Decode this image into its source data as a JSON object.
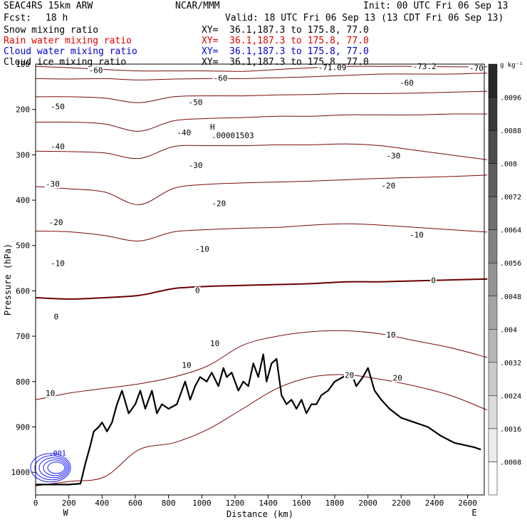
{
  "header": {
    "model": "SEAC4RS 15km ARW",
    "org": "NCAR/MMM",
    "init": "Init: 00 UTC Fri 06 Sep 13",
    "fcst_label": "Fcst:",
    "fcst_value": "18 h",
    "valid": "Valid: 18 UTC Fri 06 Sep 13 (13 CDT Fri 06 Sep 13)",
    "fields": [
      {
        "name": "Snow mixing ratio",
        "xy": "XY=  36.1,187.3 to 175.8, 77.0",
        "color": "#000000"
      },
      {
        "name": "Rain water mixing ratio",
        "xy": "XY=  36.1,187.3 to 175.8, 77.0",
        "color": "#e00000"
      },
      {
        "name": "Cloud water mixing ratio",
        "xy": "XY=  36.1,187.3 to 175.8, 77.0",
        "color": "#0000d0"
      },
      {
        "name": "Cloud ice mixing ratio",
        "xy": "XY=  36.1,187.3 to 175.8, 77.0",
        "color": "#000000"
      }
    ]
  },
  "chart_data": {
    "type": "contour cross-section",
    "xlabel": "Distance (km)",
    "ylabel": "Pressure (hPa)",
    "xlim": [
      0,
      2700
    ],
    "ylim": [
      1050,
      100
    ],
    "x_ticks": [
      0,
      200,
      400,
      600,
      800,
      1000,
      1200,
      1400,
      1600,
      1800,
      2000,
      2200,
      2400,
      2600
    ],
    "y_ticks": [
      200,
      300,
      400,
      500,
      600,
      700,
      800,
      900,
      1000
    ],
    "y_tick_top": "100",
    "endpoint_left": "W",
    "endpoint_right": "E",
    "temperature_contours_c": [
      {
        "value": -70,
        "p": [
          105,
          108,
          112,
          115,
          115,
          115,
          116,
          112,
          108,
          105,
          105,
          105,
          106,
          106
        ]
      },
      {
        "value": -60,
        "p": [
          132,
          133,
          132,
          135,
          133,
          132,
          132,
          130,
          128,
          125,
          122,
          122,
          122,
          120
        ]
      },
      {
        "value": -50,
        "p": [
          172,
          172,
          175,
          185,
          172,
          170,
          170,
          168,
          167,
          165,
          165,
          164,
          162,
          160
        ]
      },
      {
        "value": -40,
        "p": [
          228,
          228,
          232,
          248,
          225,
          220,
          218,
          215,
          215,
          212,
          212,
          212,
          210,
          210
        ]
      },
      {
        "value": -30,
        "p": [
          292,
          293,
          296,
          308,
          282,
          280,
          280,
          278,
          278,
          276,
          280,
          290,
          300,
          310
        ]
      },
      {
        "value": -20,
        "p": [
          370,
          375,
          382,
          410,
          374,
          365,
          362,
          360,
          358,
          355,
          352,
          350,
          348,
          345
        ]
      },
      {
        "value": -10,
        "p": [
          468,
          470,
          478,
          490,
          470,
          465,
          462,
          460,
          455,
          452,
          455,
          460,
          465,
          470
        ]
      },
      {
        "value": 0,
        "p": [
          615,
          618,
          615,
          610,
          595,
          590,
          588,
          586,
          584,
          580,
          580,
          578,
          576,
          574
        ]
      },
      {
        "value": 10,
        "p": [
          840,
          825,
          815,
          805,
          790,
          765,
          720,
          700,
          690,
          688,
          695,
          710,
          725,
          745
        ]
      },
      {
        "value": 20,
        "p": [
          1030,
          1020,
          1010,
          950,
          935,
          905,
          860,
          815,
          790,
          785,
          795,
          810,
          830,
          860
        ]
      }
    ],
    "temperature_labels": [
      {
        "text": "-60",
        "x": 320,
        "p": 120
      },
      {
        "text": "-71.09",
        "x": 1700,
        "p": 113
      },
      {
        "text": "-73.2",
        "x": 2270,
        "p": 111
      },
      {
        "text": "-70",
        "x": 2610,
        "p": 115
      },
      {
        "text": "-60",
        "x": 1070,
        "p": 137
      },
      {
        "text": "-60",
        "x": 2190,
        "p": 147
      },
      {
        "text": "-50",
        "x": 90,
        "p": 200
      },
      {
        "text": "-50",
        "x": 920,
        "p": 190
      },
      {
        "text": "-40",
        "x": 90,
        "p": 288
      },
      {
        "text": "-40",
        "x": 850,
        "p": 257
      },
      {
        "text": "-30",
        "x": 60,
        "p": 370
      },
      {
        "text": "-30",
        "x": 920,
        "p": 329
      },
      {
        "text": "-30",
        "x": 2110,
        "p": 308
      },
      {
        "text": "-20",
        "x": 80,
        "p": 455
      },
      {
        "text": "-20",
        "x": 1060,
        "p": 413
      },
      {
        "text": "-20",
        "x": 2080,
        "p": 374
      },
      {
        "text": "-10",
        "x": 90,
        "p": 545
      },
      {
        "text": "-10",
        "x": 960,
        "p": 514
      },
      {
        "text": "-10",
        "x": 2250,
        "p": 482
      },
      {
        "text": "0",
        "x": 110,
        "p": 663
      },
      {
        "text": "0",
        "x": 960,
        "p": 605
      },
      {
        "text": "0",
        "x": 2380,
        "p": 583
      },
      {
        "text": "10",
        "x": 60,
        "p": 832
      },
      {
        "text": "10",
        "x": 880,
        "p": 770
      },
      {
        "text": "10",
        "x": 1050,
        "p": 722
      },
      {
        "text": "10",
        "x": 2110,
        "p": 703
      },
      {
        "text": "20",
        "x": 1860,
        "p": 792
      },
      {
        "text": "20",
        "x": 2150,
        "p": 798
      }
    ],
    "high_marker": {
      "text": "H",
      "value": ".00001503",
      "x": 1050,
      "p": 263
    },
    "terrain": {
      "x": [
        0,
        60,
        120,
        200,
        270,
        300,
        330,
        350,
        380,
        400,
        430,
        460,
        490,
        520,
        560,
        600,
        630,
        660,
        700,
        730,
        760,
        800,
        850,
        900,
        930,
        960,
        990,
        1030,
        1060,
        1100,
        1130,
        1150,
        1180,
        1220,
        1250,
        1280,
        1310,
        1340,
        1370,
        1390,
        1420,
        1450,
        1480,
        1510,
        1540,
        1570,
        1600,
        1630,
        1660,
        1690,
        1720,
        1760,
        1800,
        1850,
        1900,
        1930,
        1970,
        2000,
        2040,
        2080,
        2130,
        2200,
        2280,
        2360,
        2440,
        2520,
        2580,
        2640,
        2680
      ],
      "p": [
        1027,
        1027,
        1027,
        1027,
        1025,
        980,
        940,
        910,
        900,
        890,
        910,
        890,
        850,
        820,
        870,
        850,
        820,
        860,
        820,
        870,
        850,
        860,
        850,
        800,
        840,
        810,
        790,
        800,
        780,
        810,
        770,
        790,
        780,
        820,
        800,
        810,
        760,
        790,
        740,
        800,
        760,
        750,
        830,
        850,
        840,
        860,
        840,
        870,
        850,
        850,
        830,
        820,
        800,
        790,
        780,
        810,
        790,
        770,
        820,
        840,
        860,
        880,
        890,
        900,
        920,
        935,
        940,
        945,
        950
      ]
    },
    "cloud_water_contours": [
      {
        "value": ".001",
        "label_x": 80,
        "label_p": 963
      }
    ],
    "colorbar": {
      "unit": "g kg⁻¹",
      "levels": [
        ".0096",
        ".0088",
        ".008",
        ".0072",
        ".0064",
        ".0056",
        ".0048",
        ".004",
        ".0032",
        ".0024",
        ".0016",
        ".0008"
      ]
    }
  }
}
